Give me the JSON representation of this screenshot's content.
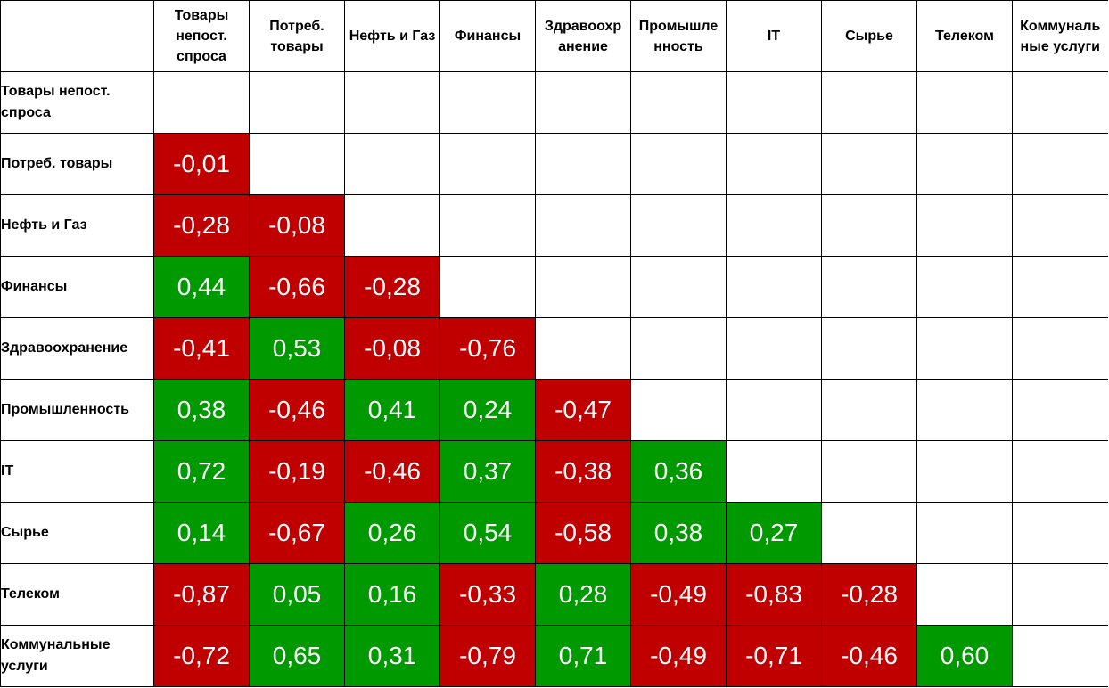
{
  "chart_data": {
    "type": "heatmap",
    "title": "",
    "column_labels": [
      "Товары непост. спроса",
      "Потреб. товары",
      "Нефть и Газ",
      "Финансы",
      "Здравоохр анение",
      "Промышле нность",
      "IT",
      "Сырье",
      "Телеком",
      "Коммуналь ные услуги"
    ],
    "row_labels": [
      "Товары непост. спроса",
      "Потреб. товары",
      "Нефть и Газ",
      "Финансы",
      "Здравоохранение",
      "Промышленность",
      "IT",
      "Сырье",
      "Телеком",
      "Коммунальные услуги"
    ],
    "values": [
      [
        null,
        null,
        null,
        null,
        null,
        null,
        null,
        null,
        null,
        null
      ],
      [
        "-0,01",
        null,
        null,
        null,
        null,
        null,
        null,
        null,
        null,
        null
      ],
      [
        "-0,28",
        "-0,08",
        null,
        null,
        null,
        null,
        null,
        null,
        null,
        null
      ],
      [
        "0,44",
        "-0,66",
        "-0,28",
        null,
        null,
        null,
        null,
        null,
        null,
        null
      ],
      [
        "-0,41",
        "0,53",
        "-0,08",
        "-0,76",
        null,
        null,
        null,
        null,
        null,
        null
      ],
      [
        "0,38",
        "-0,46",
        "0,41",
        "0,24",
        "-0,47",
        null,
        null,
        null,
        null,
        null
      ],
      [
        "0,72",
        "-0,19",
        "-0,46",
        "0,37",
        "-0,38",
        "0,36",
        null,
        null,
        null,
        null
      ],
      [
        "0,14",
        "-0,67",
        "0,26",
        "0,54",
        "-0,58",
        "0,38",
        "0,27",
        null,
        null,
        null
      ],
      [
        "-0,87",
        "0,05",
        "0,16",
        "-0,33",
        "0,28",
        "-0,49",
        "-0,83",
        "-0,28",
        null,
        null
      ],
      [
        "-0,72",
        "0,65",
        "0,31",
        "-0,79",
        "0,71",
        "-0,49",
        "-0,71",
        "-0,46",
        "0,60",
        null
      ]
    ],
    "colors": {
      "negative": "#c00000",
      "positive": "#009900",
      "empty": "#ffffff",
      "text": "#ffffff",
      "grid": "#000000"
    }
  }
}
